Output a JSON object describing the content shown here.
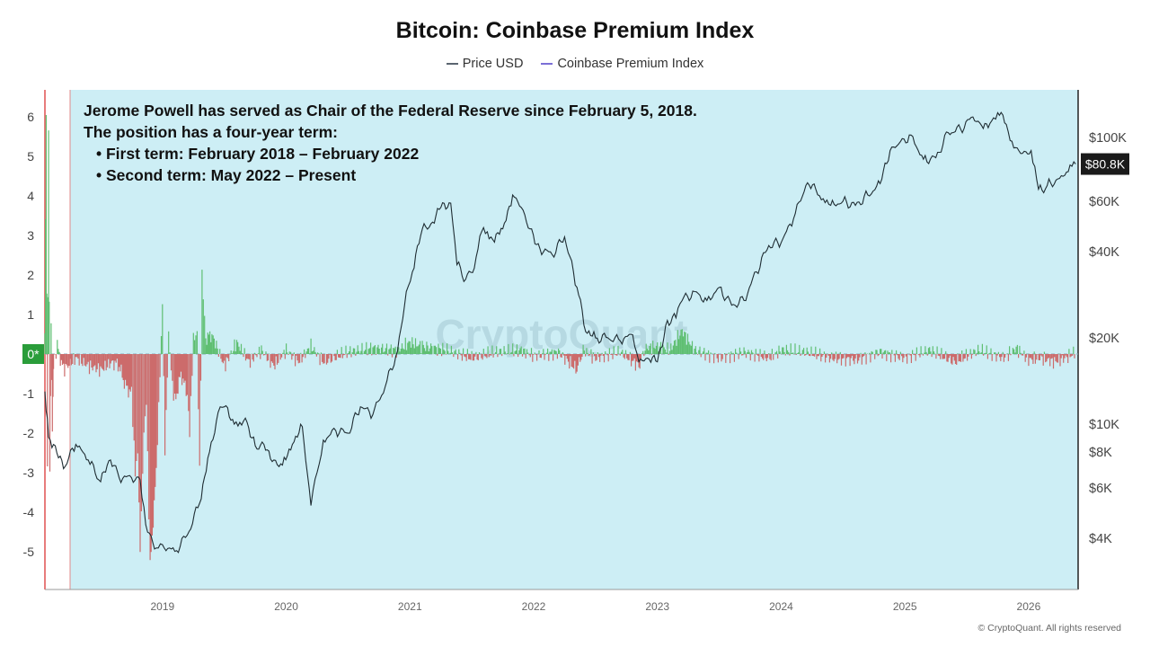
{
  "chart_data": {
    "type": "line",
    "title": "Bitcoin: Coinbase Premium Index",
    "legend": [
      {
        "name": "Price USD",
        "color": "#5a6570"
      },
      {
        "name": "Coinbase Premium Index",
        "color": "#7b6fd6"
      }
    ],
    "legend_position": "top-center",
    "left_axis": {
      "ticks": [
        "6",
        "5",
        "4",
        "3",
        "2",
        "1",
        "0*",
        "-1",
        "-2",
        "-3",
        "-4",
        "-5"
      ],
      "ylim": [
        -5.6,
        6.3
      ],
      "zero_label": "0*"
    },
    "right_axis": {
      "scale": "log",
      "ticks": [
        "$100K",
        "$60K",
        "$40K",
        "$20K",
        "$10K",
        "$8K",
        "$6K",
        "$4K"
      ],
      "tick_values": [
        100000,
        60000,
        40000,
        20000,
        10000,
        8000,
        6000,
        4000
      ],
      "current_value_label": "$80.8K"
    },
    "x_axis": {
      "ticks": [
        "2019",
        "2020",
        "2021",
        "2022",
        "2023",
        "2024",
        "2025",
        "2026"
      ],
      "xlim": [
        2018.05,
        2026.4
      ]
    },
    "series": [
      {
        "name": "Price USD",
        "x": [
          2018.05,
          2018.08,
          2018.12,
          2018.2,
          2018.3,
          2018.4,
          2018.5,
          2018.58,
          2018.65,
          2018.75,
          2018.82,
          2018.88,
          2018.95,
          2019.0,
          2019.1,
          2019.2,
          2019.3,
          2019.38,
          2019.45,
          2019.5,
          2019.58,
          2019.67,
          2019.75,
          2019.82,
          2019.9,
          2019.97,
          2020.05,
          2020.13,
          2020.2,
          2020.25,
          2020.3,
          2020.4,
          2020.5,
          2020.6,
          2020.7,
          2020.8,
          2020.9,
          2020.97,
          2021.02,
          2021.1,
          2021.17,
          2021.25,
          2021.33,
          2021.38,
          2021.45,
          2021.52,
          2021.58,
          2021.67,
          2021.75,
          2021.83,
          2021.9,
          2021.97,
          2022.05,
          2022.15,
          2022.25,
          2022.35,
          2022.42,
          2022.5,
          2022.6,
          2022.7,
          2022.8,
          2022.85,
          2022.92,
          2023.0,
          2023.08,
          2023.15,
          2023.2,
          2023.3,
          2023.4,
          2023.5,
          2023.6,
          2023.7,
          2023.8,
          2023.9,
          2024.0,
          2024.1,
          2024.2,
          2024.28,
          2024.4,
          2024.5,
          2024.6,
          2024.7,
          2024.8,
          2024.88,
          2024.95,
          2025.05,
          2025.15,
          2025.25,
          2025.35,
          2025.45,
          2025.55,
          2025.62,
          2025.7,
          2025.75,
          2025.82,
          2025.88,
          2025.95,
          2026.02,
          2026.08,
          2026.15,
          2026.25,
          2026.32,
          2026.38
        ],
        "y": [
          13000,
          9000,
          8500,
          7000,
          8500,
          7500,
          6300,
          7500,
          6500,
          6500,
          6400,
          4200,
          3700,
          3800,
          3600,
          4100,
          5300,
          8000,
          11000,
          11500,
          10000,
          10500,
          8400,
          8500,
          7500,
          7200,
          8500,
          9800,
          5200,
          6800,
          8800,
          9500,
          9300,
          11500,
          10800,
          13500,
          18000,
          29000,
          34000,
          48000,
          50000,
          57000,
          59000,
          36000,
          32000,
          35000,
          47000,
          44000,
          48000,
          63000,
          57000,
          48000,
          41000,
          39000,
          45000,
          30000,
          21000,
          20000,
          20000,
          19500,
          20500,
          16500,
          17000,
          16500,
          23000,
          23500,
          27000,
          29000,
          27000,
          30000,
          26000,
          27000,
          34000,
          42000,
          43000,
          52000,
          68000,
          66000,
          58000,
          60000,
          58000,
          63000,
          69000,
          90000,
          95000,
          102000,
          84000,
          85000,
          104000,
          107000,
          118000,
          110000,
          114000,
          122000,
          111000,
          92000,
          88000,
          90000,
          66000,
          68000,
          72000,
          76000,
          80800
        ],
        "color": "#1f2d33"
      },
      {
        "name": "Coinbase Premium Index",
        "note": "Values above 0 drawn green, below 0 drawn red",
        "x": [
          2018.05,
          2018.06,
          2018.07,
          2018.08,
          2018.09,
          2018.1,
          2018.11,
          2018.12,
          2018.15,
          2018.2,
          2018.3,
          2018.4,
          2018.5,
          2018.6,
          2018.65,
          2018.7,
          2018.75,
          2018.78,
          2018.8,
          2018.82,
          2018.85,
          2018.87,
          2018.9,
          2018.95,
          2018.98,
          2019.0,
          2019.02,
          2019.05,
          2019.08,
          2019.1,
          2019.15,
          2019.2,
          2019.22,
          2019.25,
          2019.28,
          2019.3,
          2019.32,
          2019.35,
          2019.4,
          2019.5,
          2019.6,
          2019.7,
          2019.8,
          2019.9,
          2020.0,
          2020.1,
          2020.2,
          2020.3,
          2020.5,
          2020.7,
          2020.9,
          2021.0,
          2021.1,
          2021.3,
          2021.5,
          2021.7,
          2021.9,
          2022.0,
          2022.2,
          2022.35,
          2022.4,
          2022.5,
          2022.7,
          2022.85,
          2022.9,
          2023.0,
          2023.1,
          2023.2,
          2023.3,
          2023.5,
          2023.7,
          2023.9,
          2024.0,
          2024.2,
          2024.4,
          2024.6,
          2024.8,
          2025.0,
          2025.2,
          2025.4,
          2025.6,
          2025.8,
          2025.9,
          2026.0,
          2026.1,
          2026.2,
          2026.3,
          2026.38
        ],
        "y": [
          0.5,
          6.1,
          -2.9,
          5.7,
          -3.0,
          0.8,
          -2.0,
          -0.3,
          0.2,
          -0.4,
          -0.1,
          -0.3,
          -0.4,
          -0.2,
          -0.3,
          -0.8,
          -1.0,
          -3.0,
          -2.5,
          -5.0,
          -2.0,
          -1.2,
          -5.4,
          -3.0,
          -0.5,
          1.3,
          -2.5,
          0.5,
          -0.8,
          -1.2,
          -0.5,
          -1.0,
          -2.0,
          0.4,
          0.5,
          -3.0,
          2.0,
          0.4,
          0.5,
          -0.3,
          0.3,
          -0.2,
          0.1,
          -0.3,
          0.1,
          -0.2,
          0.2,
          -0.2,
          0.05,
          0.15,
          0.1,
          0.3,
          0.2,
          0.1,
          -0.1,
          0.05,
          0.1,
          -0.05,
          0.05,
          -0.4,
          0.1,
          -0.1,
          0.05,
          -0.3,
          0.15,
          0.2,
          0.1,
          0.6,
          0.1,
          -0.1,
          0.05,
          -0.1,
          0.1,
          0.05,
          -0.1,
          -0.15,
          0.05,
          -0.1,
          0.1,
          -0.2,
          0.1,
          -0.1,
          0.15,
          -0.15,
          -0.1,
          -0.2,
          -0.1,
          0.05
        ]
      }
    ],
    "annotations": [
      "Jerome Powell has served as Chair of the Federal Reserve since February 5, 2018.",
      "The position has a four-year term:",
      "• First term: February 2018 – February 2022",
      "• Second term: May 2022 – Present"
    ],
    "watermark": "CryptoQuant",
    "colors": {
      "plot_background": "#cdeef5",
      "positive": "#5fbf72",
      "negative": "#cc6b6b",
      "price": "#1f2d33",
      "zero_badge": "#2a9d3a",
      "price_badge": "#1a1a1a",
      "left_edge": "#e05050"
    }
  },
  "copyright": "© CryptoQuant. All rights reserved"
}
